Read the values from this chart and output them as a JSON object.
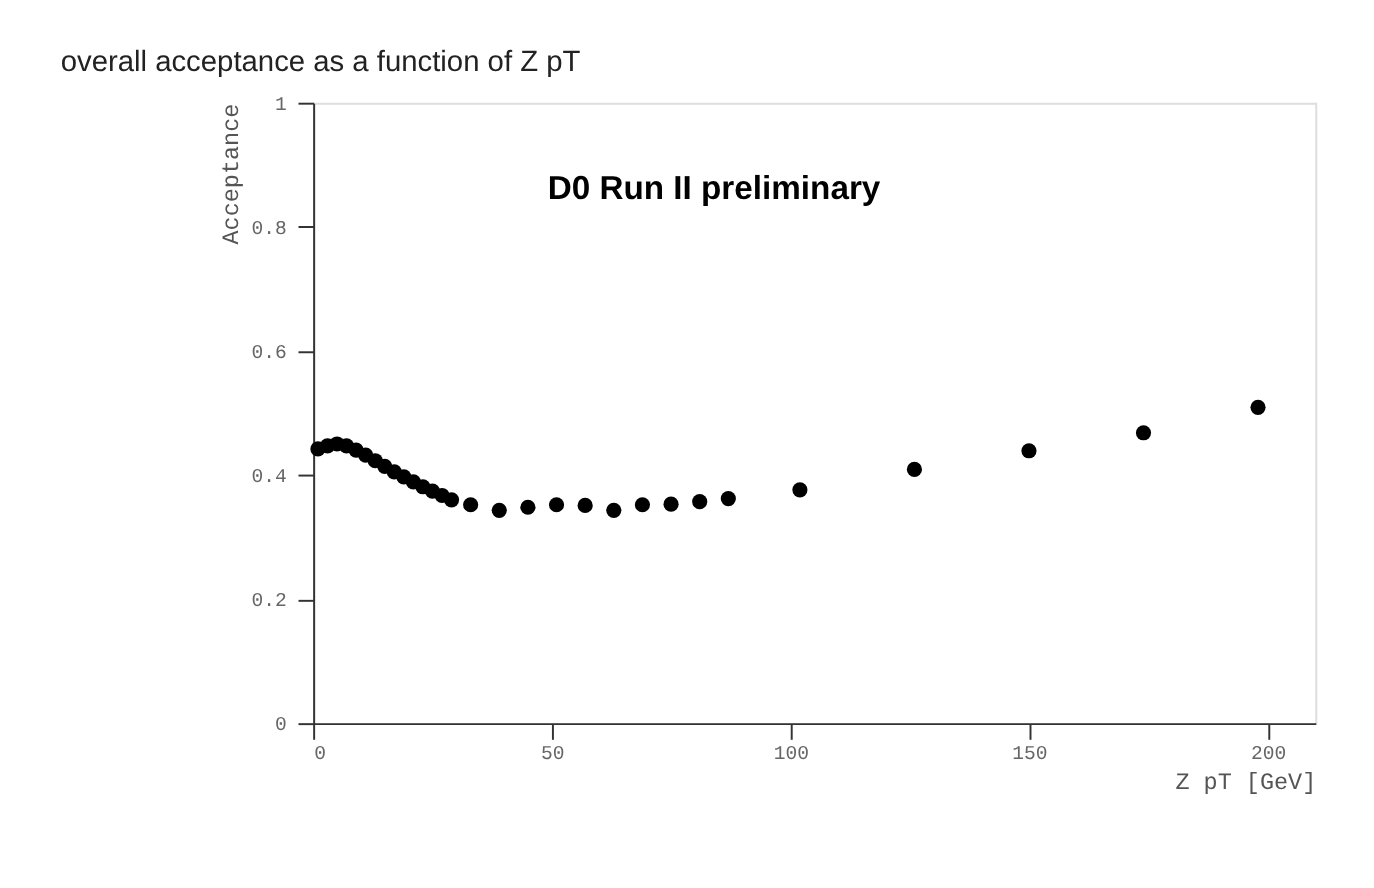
{
  "chart_data": {
    "type": "scatter",
    "title": "overall acceptance as a function of Z pT",
    "xlabel": "Z pT [GeV]",
    "ylabel": "Acceptance",
    "x": [
      1,
      3,
      5,
      7,
      9,
      11,
      13,
      15,
      17,
      19,
      21,
      23,
      25,
      27,
      29,
      33,
      39,
      45,
      51,
      57,
      63,
      69,
      75,
      81,
      87,
      102,
      126,
      150,
      174,
      198
    ],
    "values": [
      0.442,
      0.447,
      0.45,
      0.447,
      0.44,
      0.432,
      0.423,
      0.414,
      0.405,
      0.397,
      0.389,
      0.381,
      0.374,
      0.367,
      0.36,
      0.352,
      0.343,
      0.348,
      0.352,
      0.351,
      0.343,
      0.352,
      0.353,
      0.357,
      0.362,
      0.376,
      0.409,
      0.439,
      0.468,
      0.509
    ],
    "color": "#000000",
    "marker": "circle",
    "xlim": [
      0,
      210
    ],
    "xticks": [
      0,
      50,
      100,
      150,
      200
    ],
    "ylim": [
      0,
      1
    ],
    "yticks": [
      0,
      0.2,
      0.4,
      0.6,
      0.8,
      1
    ],
    "annotations": [
      "D0 Run II preliminary"
    ],
    "grid": false
  }
}
